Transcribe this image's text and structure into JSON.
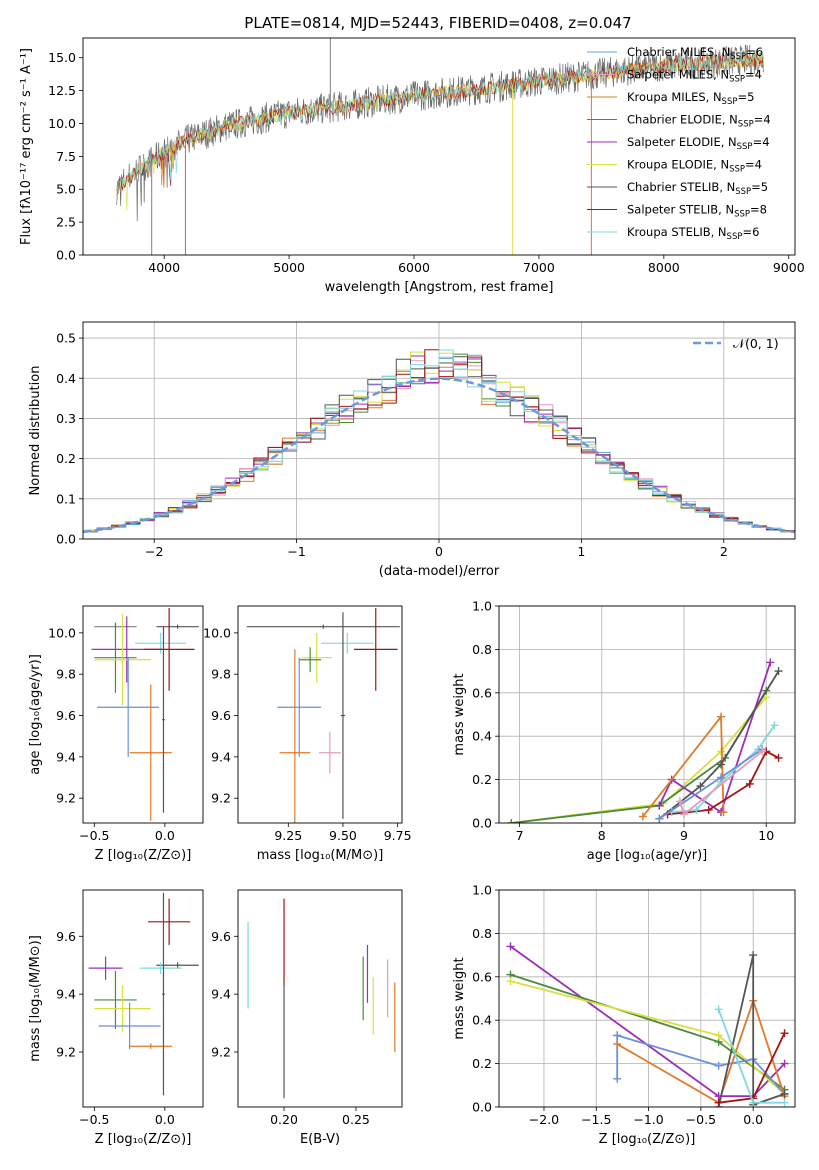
{
  "suptitle": "PLATE=0814, MJD=52443, FIBERID=0408, z=0.047",
  "colors": {
    "cMILES": "#5aa7e0",
    "sMILES": "#e89ab8",
    "kMILES": "#c58a1e",
    "cELODIE": "#4a8a3c",
    "sELODIE": "#9b2fb8",
    "kELODIE": "#d8e040",
    "cSTELIB": "#555555",
    "sSTELIB": "#a01515",
    "kSTELIB": "#80d8dc",
    "orange": "#e07a2a",
    "blue": "#6a8fe0",
    "lime": "#c8e860",
    "gray": "#7f7f7f",
    "gauss": "#6a9ae0"
  },
  "chart_data": [
    {
      "id": "spectrum",
      "type": "line",
      "xlabel": "wavelength [Angstrom, rest frame]",
      "ylabel": "Flux [fλ10⁻¹⁷ erg cm⁻² s⁻¹ A⁻¹]",
      "xlim": [
        3350,
        9050
      ],
      "ylim": [
        0,
        16.5
      ],
      "xticks": [
        4000,
        5000,
        6000,
        7000,
        8000,
        9000
      ],
      "yticks": [
        0.0,
        2.5,
        5.0,
        7.5,
        10.0,
        12.5,
        15.0
      ],
      "ytick_labels": [
        "0.0",
        "2.5",
        "5.0",
        "7.5",
        "10.0",
        "12.5",
        "15.0"
      ],
      "legend_placement": "upper-right",
      "legend": [
        {
          "label": "Chabrier MILES, N",
          "sub": "SSP",
          "suffix": "=6",
          "color_key": "cMILES"
        },
        {
          "label": "Salpeter MILES, N",
          "sub": "SSP",
          "suffix": "=4",
          "color_key": "sMILES"
        },
        {
          "label": "Kroupa MILES, N",
          "sub": "SSP",
          "suffix": "=5",
          "color_key": "kMILES"
        },
        {
          "label": "Chabrier ELODIE, N",
          "sub": "SSP",
          "suffix": "=4",
          "color_key": "cELODIE"
        },
        {
          "label": "Salpeter ELODIE, N",
          "sub": "SSP",
          "suffix": "=4",
          "color_key": "sELODIE"
        },
        {
          "label": "Kroupa ELODIE, N",
          "sub": "SSP",
          "suffix": "=4",
          "color_key": "kELODIE"
        },
        {
          "label": "Chabrier STELIB, N",
          "sub": "SSP",
          "suffix": "=5",
          "color_key": "cSTELIB"
        },
        {
          "label": "Salpeter STELIB, N",
          "sub": "SSP",
          "suffix": "=8",
          "color_key": "sSTELIB"
        },
        {
          "label": "Kroupa STELIB, N",
          "sub": "SSP",
          "suffix": "=6",
          "color_key": "kSTELIB"
        }
      ],
      "data_trend": {
        "x": [
          3620,
          3700,
          3800,
          4000,
          4200,
          4500,
          5000,
          5500,
          6000,
          6500,
          7000,
          7500,
          8000,
          8500,
          8800
        ],
        "y": [
          5.0,
          5.8,
          6.5,
          7.8,
          8.8,
          9.8,
          10.8,
          11.4,
          12.1,
          12.6,
          13.2,
          13.8,
          14.4,
          14.7,
          14.9
        ]
      },
      "spikes": [
        {
          "x": 3900,
          "y": 0
        },
        {
          "x": 4170,
          "y": 0
        },
        {
          "x": 5330,
          "y": 16.5
        },
        {
          "x": 6790,
          "y": 0
        },
        {
          "x": 7420,
          "y": 0
        }
      ]
    },
    {
      "id": "residuals",
      "type": "step",
      "xlabel": "(data-model)/error",
      "ylabel": "Normed distribution",
      "xlim": [
        -2.5,
        2.5
      ],
      "ylim": [
        0,
        0.54
      ],
      "xticks": [
        -2,
        -1,
        0,
        1,
        2
      ],
      "xtick_labels": [
        "−2",
        "−1",
        "0",
        "1",
        "2"
      ],
      "yticks": [
        0.0,
        0.1,
        0.2,
        0.3,
        0.4,
        0.5
      ],
      "ytick_labels": [
        "0.0",
        "0.1",
        "0.2",
        "0.3",
        "0.4",
        "0.5"
      ],
      "grid": true,
      "legend_placement": "upper-right",
      "legend": [
        {
          "label": "𝒩(0, 1)",
          "color_key": "gauss",
          "style": "dashed"
        }
      ],
      "bin_width": 0.1
    },
    {
      "id": "age_Z",
      "type": "errorbar",
      "xlabel": "Z [log₁₀(Z/Z⊙)]",
      "ylabel": "age  [log₁₀(age/yr)]",
      "xlim": [
        -0.58,
        0.27
      ],
      "ylim": [
        9.08,
        10.13
      ],
      "xticks": [
        -0.5,
        0.0
      ],
      "xtick_labels": [
        "−0.5",
        "0.0"
      ],
      "yticks": [
        9.2,
        9.4,
        9.6,
        9.8,
        10.0
      ],
      "ytick_labels": [
        "9.2",
        "9.4",
        "9.6",
        "9.8",
        "10.0"
      ],
      "points": [
        {
          "x": -0.35,
          "xerr": 0.15,
          "y": 10.03,
          "yerr": 0.01,
          "c": "gray"
        },
        {
          "x": 0.09,
          "xerr": 0.15,
          "y": 10.03,
          "yerr": 0.01,
          "c": "cSTELIB"
        },
        {
          "x": -0.03,
          "xerr": 0.18,
          "y": 9.95,
          "yerr": 0.05,
          "c": "kSTELIB"
        },
        {
          "x": -0.27,
          "xerr": 0.25,
          "y": 9.92,
          "yerr": 0.16,
          "c": "sELODIE"
        },
        {
          "x": 0.03,
          "xerr": 0.18,
          "y": 9.92,
          "yerr": 0.2,
          "c": "sSTELIB"
        },
        {
          "x": -0.35,
          "xerr": 0.15,
          "y": 9.88,
          "yerr": 0.17,
          "c": "cELODIE"
        },
        {
          "x": -0.3,
          "xerr": 0.2,
          "y": 9.87,
          "yerr": 0.22,
          "c": "kELODIE"
        },
        {
          "x": -0.26,
          "xerr": 0.22,
          "y": 9.64,
          "yerr": 0.24,
          "c": "blue"
        },
        {
          "x": -0.1,
          "xerr": 0.15,
          "y": 9.42,
          "yerr": 0.33,
          "c": "orange"
        },
        {
          "x": -0.01,
          "xerr": 0.01,
          "y": 9.58,
          "yerr": 0.45,
          "c": "cSTELIB"
        }
      ]
    },
    {
      "id": "age_mass",
      "type": "errorbar",
      "xlabel": "mass [log₁₀(M/M⊙)]",
      "ylabel": "",
      "xlim": [
        9.02,
        9.77
      ],
      "ylim": [
        9.08,
        10.13
      ],
      "xticks": [
        9.25,
        9.5,
        9.75
      ],
      "xtick_labels": [
        "9.25",
        "9.50",
        "9.75"
      ],
      "yticks": [
        9.2,
        9.4,
        9.6,
        9.8,
        10.0
      ],
      "ytick_labels": [
        "9.2",
        "9.4",
        "9.6",
        "9.8",
        "10.0"
      ],
      "points": [
        {
          "x": 9.41,
          "xerr": 0.35,
          "y": 10.03,
          "yerr": 0.01,
          "c": "cSTELIB"
        },
        {
          "x": 9.52,
          "xerr": 0.12,
          "y": 9.95,
          "yerr": 0.05,
          "c": "kSTELIB"
        },
        {
          "x": 9.65,
          "xerr": 0.1,
          "y": 9.92,
          "yerr": 0.2,
          "c": "sSTELIB"
        },
        {
          "x": 9.38,
          "xerr": 0.07,
          "y": 9.88,
          "yerr": 0.12,
          "c": "kELODIE"
        },
        {
          "x": 9.35,
          "xerr": 0.05,
          "y": 9.87,
          "yerr": 0.06,
          "c": "cELODIE"
        },
        {
          "x": 9.3,
          "xerr": 0.1,
          "y": 9.64,
          "yerr": 0.24,
          "c": "blue"
        },
        {
          "x": 9.28,
          "xerr": 0.07,
          "y": 9.42,
          "yerr": 0.5,
          "c": "orange"
        },
        {
          "x": 9.44,
          "xerr": 0.05,
          "y": 9.42,
          "yerr": 0.1,
          "c": "sMILES"
        },
        {
          "x": 9.5,
          "xerr": 0.01,
          "y": 9.6,
          "yerr": 0.5,
          "c": "cSTELIB"
        }
      ]
    },
    {
      "id": "weight_age",
      "type": "line",
      "xlabel": "age  [log₁₀(age/yr)]",
      "ylabel": "mass weight",
      "xlim": [
        6.75,
        10.35
      ],
      "ylim": [
        0,
        1.0
      ],
      "xticks": [
        7,
        8,
        9,
        10
      ],
      "xtick_labels": [
        "7",
        "8",
        "9",
        "10"
      ],
      "yticks": [
        0.0,
        0.2,
        0.4,
        0.6,
        0.8,
        1.0
      ],
      "ytick_labels": [
        "0.0",
        "0.2",
        "0.4",
        "0.6",
        "0.8",
        "1.0"
      ],
      "grid": true,
      "series": [
        {
          "c": "kELODIE",
          "x": [
            6.9,
            8.75,
            9.45,
            10.0
          ],
          "y": [
            0.0,
            0.09,
            0.33,
            0.58
          ]
        },
        {
          "c": "cELODIE",
          "x": [
            6.9,
            8.7,
            9.5,
            10.0
          ],
          "y": [
            0.0,
            0.08,
            0.3,
            0.61
          ]
        },
        {
          "c": "sELODIE",
          "x": [
            8.7,
            8.85,
            9.45,
            10.05
          ],
          "y": [
            0.08,
            0.2,
            0.05,
            0.74
          ]
        },
        {
          "c": "orange",
          "x": [
            8.5,
            9.45,
            9.48
          ],
          "y": [
            0.03,
            0.49,
            0.05
          ]
        },
        {
          "c": "cSTELIB",
          "x": [
            8.7,
            9.2,
            9.45,
            10.15
          ],
          "y": [
            0.02,
            0.17,
            0.27,
            0.7
          ]
        },
        {
          "c": "sSTELIB",
          "x": [
            8.8,
            9.3,
            9.8,
            10.0,
            10.15
          ],
          "y": [
            0.04,
            0.06,
            0.18,
            0.33,
            0.3
          ]
        },
        {
          "c": "kSTELIB",
          "x": [
            8.85,
            9.15,
            9.45,
            9.9,
            10.1
          ],
          "y": [
            0.05,
            0.06,
            0.19,
            0.34,
            0.45
          ]
        },
        {
          "c": "blue",
          "x": [
            8.7,
            9.45,
            9.95
          ],
          "y": [
            0.02,
            0.21,
            0.34
          ]
        },
        {
          "c": "sMILES",
          "x": [
            8.95,
            9.0,
            9.95
          ],
          "y": [
            0.1,
            0.04,
            0.33
          ]
        }
      ]
    },
    {
      "id": "mass_Z",
      "type": "errorbar",
      "xlabel": "Z [log₁₀(Z/Z⊙)]",
      "ylabel": "mass [log₁₀(M/M⊙)]",
      "xlim": [
        -0.58,
        0.27
      ],
      "ylim": [
        9.01,
        9.76
      ],
      "xticks": [
        -0.5,
        0.0
      ],
      "xtick_labels": [
        "−0.5",
        "0.0"
      ],
      "yticks": [
        9.2,
        9.4,
        9.6
      ],
      "ytick_labels": [
        "9.2",
        "9.4",
        "9.6"
      ],
      "points": [
        {
          "x": 0.03,
          "xerr": 0.15,
          "y": 9.65,
          "yerr": 0.08,
          "c": "sSTELIB"
        },
        {
          "x": 0.09,
          "xerr": 0.15,
          "y": 9.5,
          "yerr": 0.01,
          "c": "cSTELIB"
        },
        {
          "x": -0.03,
          "xerr": 0.15,
          "y": 9.49,
          "yerr": 0.02,
          "c": "kSTELIB"
        },
        {
          "x": -0.42,
          "xerr": 0.12,
          "y": 9.49,
          "yerr": 0.04,
          "c": "sELODIE"
        },
        {
          "x": -0.35,
          "xerr": 0.15,
          "y": 9.38,
          "yerr": 0.1,
          "c": "cELODIE"
        },
        {
          "x": -0.3,
          "xerr": 0.2,
          "y": 9.35,
          "yerr": 0.08,
          "c": "kELODIE"
        },
        {
          "x": -0.25,
          "xerr": 0.22,
          "y": 9.29,
          "yerr": 0.08,
          "c": "blue"
        },
        {
          "x": -0.1,
          "xerr": 0.15,
          "y": 9.22,
          "yerr": 0.01,
          "c": "orange"
        },
        {
          "x": -0.01,
          "xerr": 0.01,
          "y": 9.4,
          "yerr": 0.35,
          "c": "cSTELIB"
        }
      ]
    },
    {
      "id": "mass_EBV",
      "type": "errorbar",
      "xlabel": "E(B-V)",
      "ylabel": "",
      "xlim": [
        0.168,
        0.282
      ],
      "ylim": [
        9.01,
        9.76
      ],
      "xticks": [
        0.2,
        0.25
      ],
      "xtick_labels": [
        "0.20",
        "0.25"
      ],
      "yticks": [
        9.2,
        9.4,
        9.6
      ],
      "ytick_labels": [
        "9.2",
        "9.4",
        "9.6"
      ],
      "points": [
        {
          "x": 0.175,
          "y": 9.5,
          "yerr": 0.15,
          "c": "kSTELIB"
        },
        {
          "x": 0.2,
          "y": 9.58,
          "yerr": 0.15,
          "c": "sSTELIB"
        },
        {
          "x": 0.2,
          "y": 9.24,
          "yerr": 0.2,
          "c": "cSTELIB"
        },
        {
          "x": 0.255,
          "y": 9.42,
          "yerr": 0.11,
          "c": "cELODIE"
        },
        {
          "x": 0.258,
          "y": 9.47,
          "yerr": 0.1,
          "c": "sELODIE"
        },
        {
          "x": 0.262,
          "y": 9.36,
          "yerr": 0.1,
          "c": "kELODIE"
        },
        {
          "x": 0.272,
          "y": 9.42,
          "yerr": 0.1,
          "c": "sMILES"
        },
        {
          "x": 0.277,
          "y": 9.32,
          "yerr": 0.12,
          "c": "orange"
        }
      ]
    },
    {
      "id": "weight_Z",
      "type": "line",
      "xlabel": "Z [log₁₀(Z/Z⊙)]",
      "ylabel": "mass weight",
      "xlim": [
        -2.43,
        0.4
      ],
      "ylim": [
        0,
        1.0
      ],
      "xticks": [
        -2.0,
        -1.5,
        -1.0,
        -0.5,
        0.0
      ],
      "xtick_labels": [
        "−2.0",
        "−1.5",
        "−1.0",
        "−0.5",
        "0.0"
      ],
      "yticks": [
        0.0,
        0.2,
        0.4,
        0.6,
        0.8,
        1.0
      ],
      "ytick_labels": [
        "0.0",
        "0.2",
        "0.4",
        "0.6",
        "0.8",
        "1.0"
      ],
      "grid": true,
      "series": [
        {
          "c": "sELODIE",
          "x": [
            -2.32,
            -0.33,
            0.0,
            0.3
          ],
          "y": [
            0.74,
            0.05,
            0.05,
            0.2
          ]
        },
        {
          "c": "cELODIE",
          "x": [
            -2.32,
            -0.33,
            0.3
          ],
          "y": [
            0.61,
            0.3,
            0.08
          ]
        },
        {
          "c": "kELODIE",
          "x": [
            -2.32,
            -0.33,
            0.3
          ],
          "y": [
            0.58,
            0.33,
            0.06
          ]
        },
        {
          "c": "blue",
          "x": [
            -1.3,
            -0.33,
            0.0,
            0.3
          ],
          "y": [
            0.33,
            0.19,
            0.22,
            0.06
          ]
        },
        {
          "c": "blue",
          "x": [
            -1.3,
            -1.3
          ],
          "y": [
            0.13,
            0.33
          ]
        },
        {
          "c": "orange",
          "x": [
            -1.3,
            -0.33,
            0.0,
            0.3
          ],
          "y": [
            0.29,
            0.02,
            0.49,
            0.05
          ]
        },
        {
          "c": "cSTELIB",
          "x": [
            -0.33,
            0.0,
            0.0,
            0.3
          ],
          "y": [
            0.0,
            0.7,
            0.01,
            0.06
          ]
        },
        {
          "c": "sSTELIB",
          "x": [
            -0.33,
            0.0,
            0.3
          ],
          "y": [
            0.02,
            0.04,
            0.34
          ]
        },
        {
          "c": "kSTELIB",
          "x": [
            -0.33,
            0.0,
            0.3
          ],
          "y": [
            0.45,
            0.02,
            0.02
          ]
        }
      ]
    }
  ]
}
